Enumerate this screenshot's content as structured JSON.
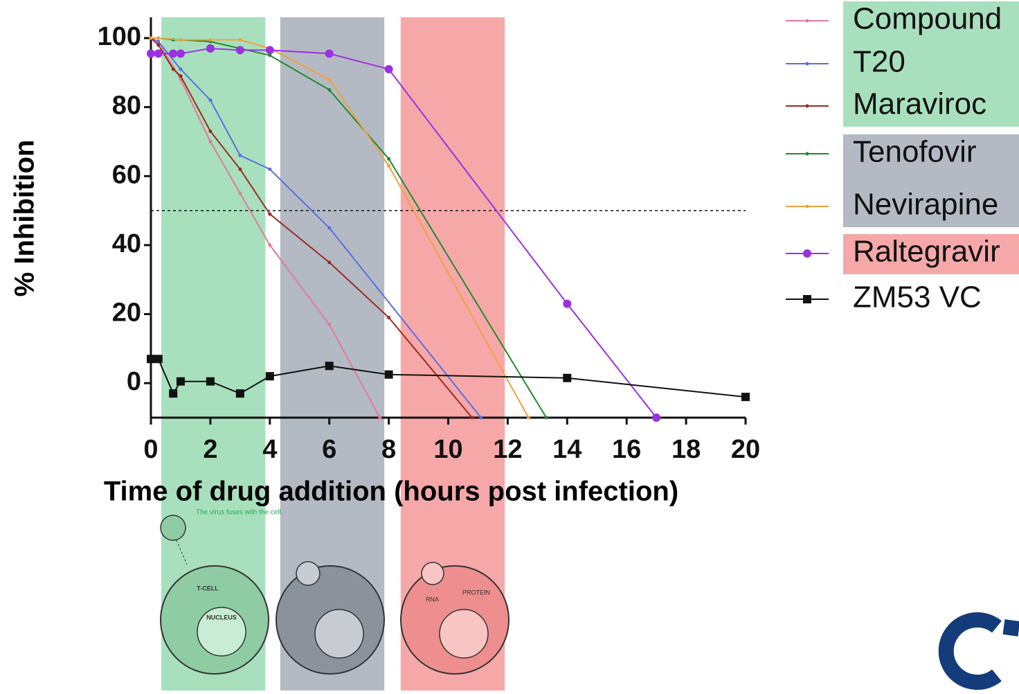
{
  "chart_data": {
    "type": "line",
    "x_label": "Time of drug addition (hours post infection)",
    "y_label": "% Inhibition",
    "xlim": [
      0,
      20
    ],
    "ylim": [
      -10,
      100
    ],
    "xticks": [
      0,
      2,
      4,
      6,
      8,
      10,
      12,
      14,
      16,
      18,
      20
    ],
    "yticks": [
      0,
      20,
      40,
      60,
      80,
      100
    ],
    "reference_line": 50,
    "bands": [
      {
        "x0": 0.35,
        "x1": 3.85,
        "color": "#a8e0be"
      },
      {
        "x0": 4.35,
        "x1": 7.85,
        "color": "#b4bac4"
      },
      {
        "x0": 8.4,
        "x1": 11.9,
        "color": "#f6a8a8"
      }
    ],
    "series": [
      {
        "name": "Compound",
        "color": "#e07a9a",
        "marker": "dot",
        "legend_color": "#a8e0be",
        "x": [
          0,
          0.25,
          1,
          2,
          3,
          4,
          6,
          7.7
        ],
        "values": [
          100,
          99,
          88,
          70,
          55,
          40,
          17,
          -10
        ]
      },
      {
        "name": "T20",
        "color": "#5a6ee0",
        "marker": "dot",
        "legend_color": "#a8e0be",
        "x": [
          0,
          0.25,
          1,
          2,
          3,
          4,
          6,
          11.1
        ],
        "values": [
          100,
          99,
          91,
          82,
          66,
          62,
          45,
          -10
        ]
      },
      {
        "name": "Maraviroc",
        "color": "#9b2a22",
        "marker": "dot",
        "legend_color": "#a8e0be",
        "x": [
          0,
          0.25,
          0.75,
          1,
          2,
          3,
          4,
          6,
          8,
          10.8
        ],
        "values": [
          100,
          98,
          91,
          89,
          73,
          62,
          49,
          35,
          19,
          -10
        ]
      },
      {
        "name": "Tenofovir",
        "color": "#1e8a2e",
        "marker": "dot",
        "legend_color": "#b4bac4",
        "x": [
          0,
          0.25,
          0.75,
          1,
          2,
          3,
          4,
          6,
          8,
          13.3
        ],
        "values": [
          100,
          100,
          99.5,
          99.5,
          99,
          97,
          95,
          85,
          65,
          -10
        ]
      },
      {
        "name": "Nevirapine",
        "color": "#f0a040",
        "marker": "dot",
        "legend_color": "#b4bac4",
        "x": [
          0,
          0.25,
          1,
          2,
          3,
          4,
          6,
          8,
          12.7
        ],
        "values": [
          100,
          100,
          99.5,
          99.5,
          99.5,
          97,
          88,
          63,
          -10
        ]
      },
      {
        "name": "Raltegravir",
        "color": "#9b30e0",
        "marker": "circle",
        "legend_color": "#f6a8a8",
        "x": [
          0,
          0.25,
          0.75,
          1,
          2,
          3,
          4,
          6,
          8,
          14,
          17
        ],
        "values": [
          95.5,
          95.5,
          95.5,
          95.5,
          97,
          96.5,
          96.5,
          95.5,
          91,
          23,
          -10
        ]
      },
      {
        "name": "ZM53 VC",
        "color": "#111111",
        "marker": "square",
        "x": [
          0,
          0.25,
          0.75,
          1,
          2,
          3,
          4,
          6,
          8,
          14,
          20
        ],
        "values": [
          7,
          7,
          -3,
          0.5,
          0.5,
          -3,
          2,
          5,
          2.5,
          1.5,
          -4
        ]
      }
    ]
  },
  "illustration_texts": [
    "The virus fuses with the cell.",
    "T-CELL",
    "NUCLEUS",
    "RNA",
    "PROTEIN"
  ]
}
